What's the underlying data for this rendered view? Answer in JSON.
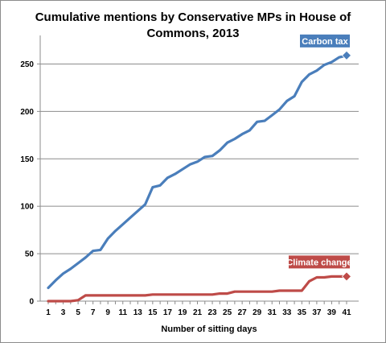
{
  "chart_data": {
    "type": "line",
    "title": "Cumulative mentions by Conservative MPs in House of Commons, 2013",
    "xlabel": "Number of sitting days",
    "ylabel": "",
    "ylim": [
      0,
      275
    ],
    "yticks": [
      0,
      50,
      100,
      150,
      200,
      250
    ],
    "xlim": [
      1,
      41
    ],
    "xticks": [
      1,
      3,
      5,
      7,
      9,
      11,
      13,
      15,
      17,
      19,
      21,
      23,
      25,
      27,
      29,
      31,
      33,
      35,
      37,
      39,
      41
    ],
    "grid": true,
    "x": [
      1,
      2,
      3,
      4,
      5,
      6,
      7,
      8,
      9,
      10,
      11,
      12,
      13,
      14,
      15,
      16,
      17,
      18,
      19,
      20,
      21,
      22,
      23,
      24,
      25,
      26,
      27,
      28,
      29,
      30,
      31,
      32,
      33,
      34,
      35,
      36,
      37,
      38,
      39,
      40,
      41
    ],
    "series": [
      {
        "name": "Carbon tax",
        "color": "#4a7ebb",
        "values": [
          14,
          22,
          29,
          34,
          40,
          46,
          53,
          54,
          66,
          74,
          81,
          88,
          95,
          102,
          120,
          122,
          130,
          134,
          139,
          144,
          147,
          152,
          153,
          159,
          167,
          171,
          176,
          180,
          189,
          190,
          196,
          202,
          211,
          216,
          231,
          239,
          243,
          249,
          252,
          257,
          259
        ]
      },
      {
        "name": "Climate change",
        "color": "#be4b48",
        "values": [
          0,
          0,
          0,
          0,
          1,
          6,
          6,
          6,
          6,
          6,
          6,
          6,
          6,
          6,
          7,
          7,
          7,
          7,
          7,
          7,
          7,
          7,
          7,
          8,
          8,
          10,
          10,
          10,
          10,
          10,
          10,
          11,
          11,
          11,
          11,
          21,
          25,
          25,
          26,
          26,
          26
        ]
      }
    ]
  }
}
